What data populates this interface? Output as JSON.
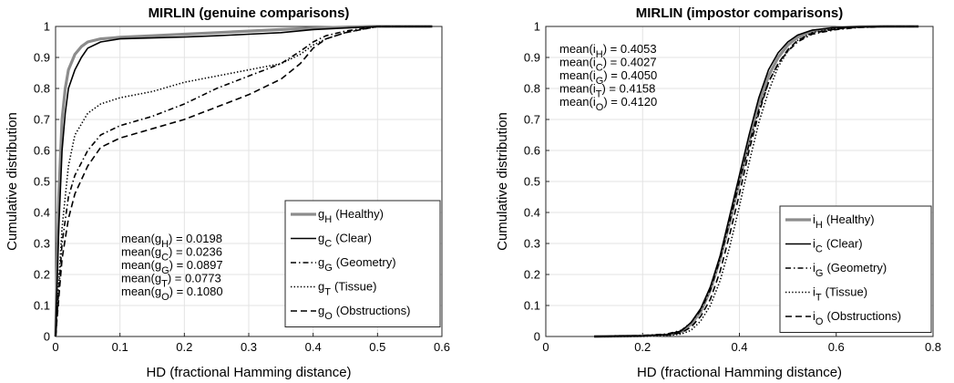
{
  "chart_data": [
    {
      "type": "line",
      "title": "MIRLIN (genuine comparisons)",
      "xlabel": "HD (fractional Hamming distance)",
      "ylabel": "Cumulative distribution",
      "xlim": [
        0,
        0.6
      ],
      "ylim": [
        0,
        1
      ],
      "xticks": [
        "0",
        "0.1",
        "0.2",
        "0.3",
        "0.4",
        "0.5",
        "0.6"
      ],
      "yticks": [
        "0",
        "0.1",
        "0.2",
        "0.3",
        "0.4",
        "0.5",
        "0.6",
        "0.7",
        "0.8",
        "0.9",
        "1"
      ],
      "grid": true,
      "legend_position": "bottom-right",
      "stats": [
        {
          "label": "mean(g_H) = 0.0198",
          "prefix": "mean(g",
          "sub": "H",
          "suffix": ") = 0.0198"
        },
        {
          "label": "mean(g_C) = 0.0236",
          "prefix": "mean(g",
          "sub": "C",
          "suffix": ") = 0.0236"
        },
        {
          "label": "mean(g_G) = 0.0897",
          "prefix": "mean(g",
          "sub": "G",
          "suffix": ") = 0.0897"
        },
        {
          "label": "mean(g_T) = 0.0773",
          "prefix": "mean(g",
          "sub": "T",
          "suffix": ") = 0.0773"
        },
        {
          "label": "mean(g_O) = 0.1080",
          "prefix": "mean(g",
          "sub": "O",
          "suffix": ") = 0.1080"
        }
      ],
      "series": [
        {
          "name": "g_H (Healthy)",
          "sym": "g",
          "sub": "H",
          "desc": "(Healthy)",
          "style": "solid-thick-gray",
          "color": "#8c8c8c",
          "x": [
            0,
            0.002,
            0.005,
            0.01,
            0.015,
            0.02,
            0.03,
            0.04,
            0.05,
            0.07,
            0.1,
            0.15,
            0.2,
            0.25,
            0.3,
            0.35,
            0.4,
            0.45,
            0.5,
            0.585
          ],
          "y": [
            0,
            0.2,
            0.45,
            0.7,
            0.8,
            0.86,
            0.91,
            0.935,
            0.95,
            0.96,
            0.965,
            0.97,
            0.975,
            0.98,
            0.985,
            0.99,
            0.995,
            0.998,
            1,
            1
          ]
        },
        {
          "name": "g_C (Clear)",
          "sym": "g",
          "sub": "C",
          "desc": "(Clear)",
          "style": "solid",
          "color": "#000000",
          "x": [
            0,
            0.002,
            0.005,
            0.01,
            0.015,
            0.02,
            0.03,
            0.04,
            0.05,
            0.07,
            0.1,
            0.15,
            0.2,
            0.25,
            0.3,
            0.35,
            0.4,
            0.45,
            0.5,
            0.585
          ],
          "y": [
            0,
            0.15,
            0.35,
            0.6,
            0.72,
            0.8,
            0.86,
            0.9,
            0.93,
            0.95,
            0.96,
            0.963,
            0.966,
            0.97,
            0.975,
            0.98,
            0.99,
            0.995,
            1,
            1
          ]
        },
        {
          "name": "g_G (Geometry)",
          "sym": "g",
          "sub": "G",
          "desc": "(Geometry)",
          "style": "dashdot",
          "color": "#000000",
          "x": [
            0,
            0.01,
            0.02,
            0.03,
            0.05,
            0.07,
            0.1,
            0.15,
            0.2,
            0.25,
            0.3,
            0.35,
            0.38,
            0.4,
            0.42,
            0.45,
            0.5,
            0.585
          ],
          "y": [
            0,
            0.3,
            0.45,
            0.52,
            0.6,
            0.65,
            0.68,
            0.71,
            0.75,
            0.8,
            0.84,
            0.88,
            0.92,
            0.95,
            0.97,
            0.985,
            1,
            1
          ]
        },
        {
          "name": "g_T (Tissue)",
          "sym": "g",
          "sub": "T",
          "desc": "(Tissue)",
          "style": "dotted",
          "color": "#000000",
          "x": [
            0,
            0.01,
            0.02,
            0.03,
            0.05,
            0.07,
            0.1,
            0.15,
            0.2,
            0.25,
            0.3,
            0.35,
            0.38,
            0.4,
            0.42,
            0.45,
            0.5,
            0.585
          ],
          "y": [
            0,
            0.35,
            0.55,
            0.65,
            0.72,
            0.75,
            0.77,
            0.79,
            0.82,
            0.84,
            0.86,
            0.88,
            0.91,
            0.94,
            0.96,
            0.98,
            1,
            1
          ]
        },
        {
          "name": "g_O (Obstructions)",
          "sym": "g",
          "sub": "O",
          "desc": "(Obstructions)",
          "style": "dashed",
          "color": "#000000",
          "x": [
            0,
            0.01,
            0.02,
            0.03,
            0.05,
            0.07,
            0.1,
            0.15,
            0.2,
            0.25,
            0.3,
            0.35,
            0.38,
            0.4,
            0.42,
            0.45,
            0.5,
            0.585
          ],
          "y": [
            0,
            0.25,
            0.38,
            0.46,
            0.55,
            0.61,
            0.64,
            0.67,
            0.7,
            0.74,
            0.78,
            0.83,
            0.88,
            0.93,
            0.96,
            0.98,
            1,
            1
          ]
        }
      ]
    },
    {
      "type": "line",
      "title": "MIRLIN (impostor comparisons)",
      "xlabel": "HD (fractional Hamming distance)",
      "ylabel": "Cumulative distribution",
      "xlim": [
        0,
        0.8
      ],
      "ylim": [
        0,
        1
      ],
      "xticks": [
        "0",
        "0.2",
        "0.4",
        "0.6",
        "0.8"
      ],
      "yticks": [
        "0",
        "0.1",
        "0.2",
        "0.3",
        "0.4",
        "0.5",
        "0.6",
        "0.7",
        "0.8",
        "0.9",
        "1"
      ],
      "grid": true,
      "legend_position": "bottom-right",
      "stats": [
        {
          "label": "mean(i_H) = 0.4053",
          "prefix": "mean(i",
          "sub": "H",
          "suffix": ") = 0.4053"
        },
        {
          "label": "mean(i_C) = 0.4027",
          "prefix": "mean(i",
          "sub": "C",
          "suffix": ") = 0.4027"
        },
        {
          "label": "mean(i_G) = 0.4050",
          "prefix": "mean(i",
          "sub": "G",
          "suffix": ") = 0.4050"
        },
        {
          "label": "mean(i_T) = 0.4158",
          "prefix": "mean(i",
          "sub": "T",
          "suffix": ") = 0.4158"
        },
        {
          "label": "mean(i_O) = 0.4120",
          "prefix": "mean(i",
          "sub": "O",
          "suffix": ") = 0.4120"
        }
      ],
      "series": [
        {
          "name": "i_H (Healthy)",
          "sym": "i",
          "sub": "H",
          "desc": "(Healthy)",
          "style": "solid-thick-gray",
          "color": "#8c8c8c",
          "x": [
            0.1,
            0.2,
            0.25,
            0.28,
            0.3,
            0.32,
            0.34,
            0.36,
            0.38,
            0.4,
            0.42,
            0.44,
            0.46,
            0.48,
            0.5,
            0.52,
            0.55,
            0.6,
            0.65,
            0.7,
            0.77
          ],
          "y": [
            0,
            0.002,
            0.005,
            0.015,
            0.04,
            0.08,
            0.15,
            0.25,
            0.37,
            0.5,
            0.63,
            0.75,
            0.84,
            0.9,
            0.94,
            0.965,
            0.985,
            0.996,
            0.999,
            1,
            1
          ]
        },
        {
          "name": "i_C (Clear)",
          "sym": "i",
          "sub": "C",
          "desc": "(Clear)",
          "style": "solid",
          "color": "#000000",
          "x": [
            0.1,
            0.2,
            0.25,
            0.28,
            0.3,
            0.32,
            0.34,
            0.36,
            0.38,
            0.4,
            0.42,
            0.44,
            0.46,
            0.48,
            0.5,
            0.52,
            0.55,
            0.6,
            0.65,
            0.7,
            0.77
          ],
          "y": [
            0,
            0.002,
            0.006,
            0.018,
            0.045,
            0.09,
            0.16,
            0.26,
            0.39,
            0.52,
            0.65,
            0.77,
            0.86,
            0.915,
            0.95,
            0.972,
            0.988,
            0.997,
            0.999,
            1,
            1
          ]
        },
        {
          "name": "i_G (Geometry)",
          "sym": "i",
          "sub": "G",
          "desc": "(Geometry)",
          "style": "dashdot",
          "color": "#000000",
          "x": [
            0.1,
            0.2,
            0.25,
            0.28,
            0.3,
            0.32,
            0.34,
            0.36,
            0.38,
            0.4,
            0.42,
            0.44,
            0.46,
            0.48,
            0.5,
            0.52,
            0.55,
            0.6,
            0.65,
            0.7,
            0.77
          ],
          "y": [
            0,
            0.003,
            0.008,
            0.02,
            0.045,
            0.085,
            0.15,
            0.25,
            0.37,
            0.5,
            0.62,
            0.73,
            0.82,
            0.88,
            0.92,
            0.95,
            0.975,
            0.99,
            0.997,
            1,
            1
          ]
        },
        {
          "name": "i_T (Tissue)",
          "sym": "i",
          "sub": "T",
          "desc": "(Tissue)",
          "style": "dotted",
          "color": "#000000",
          "x": [
            0.1,
            0.2,
            0.25,
            0.28,
            0.3,
            0.32,
            0.34,
            0.36,
            0.38,
            0.4,
            0.42,
            0.44,
            0.46,
            0.48,
            0.5,
            0.52,
            0.55,
            0.6,
            0.65,
            0.7,
            0.77
          ],
          "y": [
            0,
            0.001,
            0.003,
            0.008,
            0.02,
            0.05,
            0.1,
            0.18,
            0.29,
            0.42,
            0.56,
            0.69,
            0.79,
            0.87,
            0.92,
            0.955,
            0.98,
            0.994,
            0.998,
            1,
            1
          ]
        },
        {
          "name": "i_O (Obstructions)",
          "sym": "i",
          "sub": "O",
          "desc": "(Obstructions)",
          "style": "dashed",
          "color": "#000000",
          "x": [
            0.1,
            0.2,
            0.25,
            0.28,
            0.3,
            0.32,
            0.34,
            0.36,
            0.38,
            0.4,
            0.42,
            0.44,
            0.46,
            0.48,
            0.5,
            0.52,
            0.55,
            0.6,
            0.65,
            0.7,
            0.77
          ],
          "y": [
            0,
            0.002,
            0.005,
            0.012,
            0.03,
            0.065,
            0.12,
            0.21,
            0.33,
            0.46,
            0.6,
            0.72,
            0.82,
            0.88,
            0.925,
            0.955,
            0.978,
            0.992,
            0.998,
            1,
            1
          ]
        }
      ]
    }
  ]
}
